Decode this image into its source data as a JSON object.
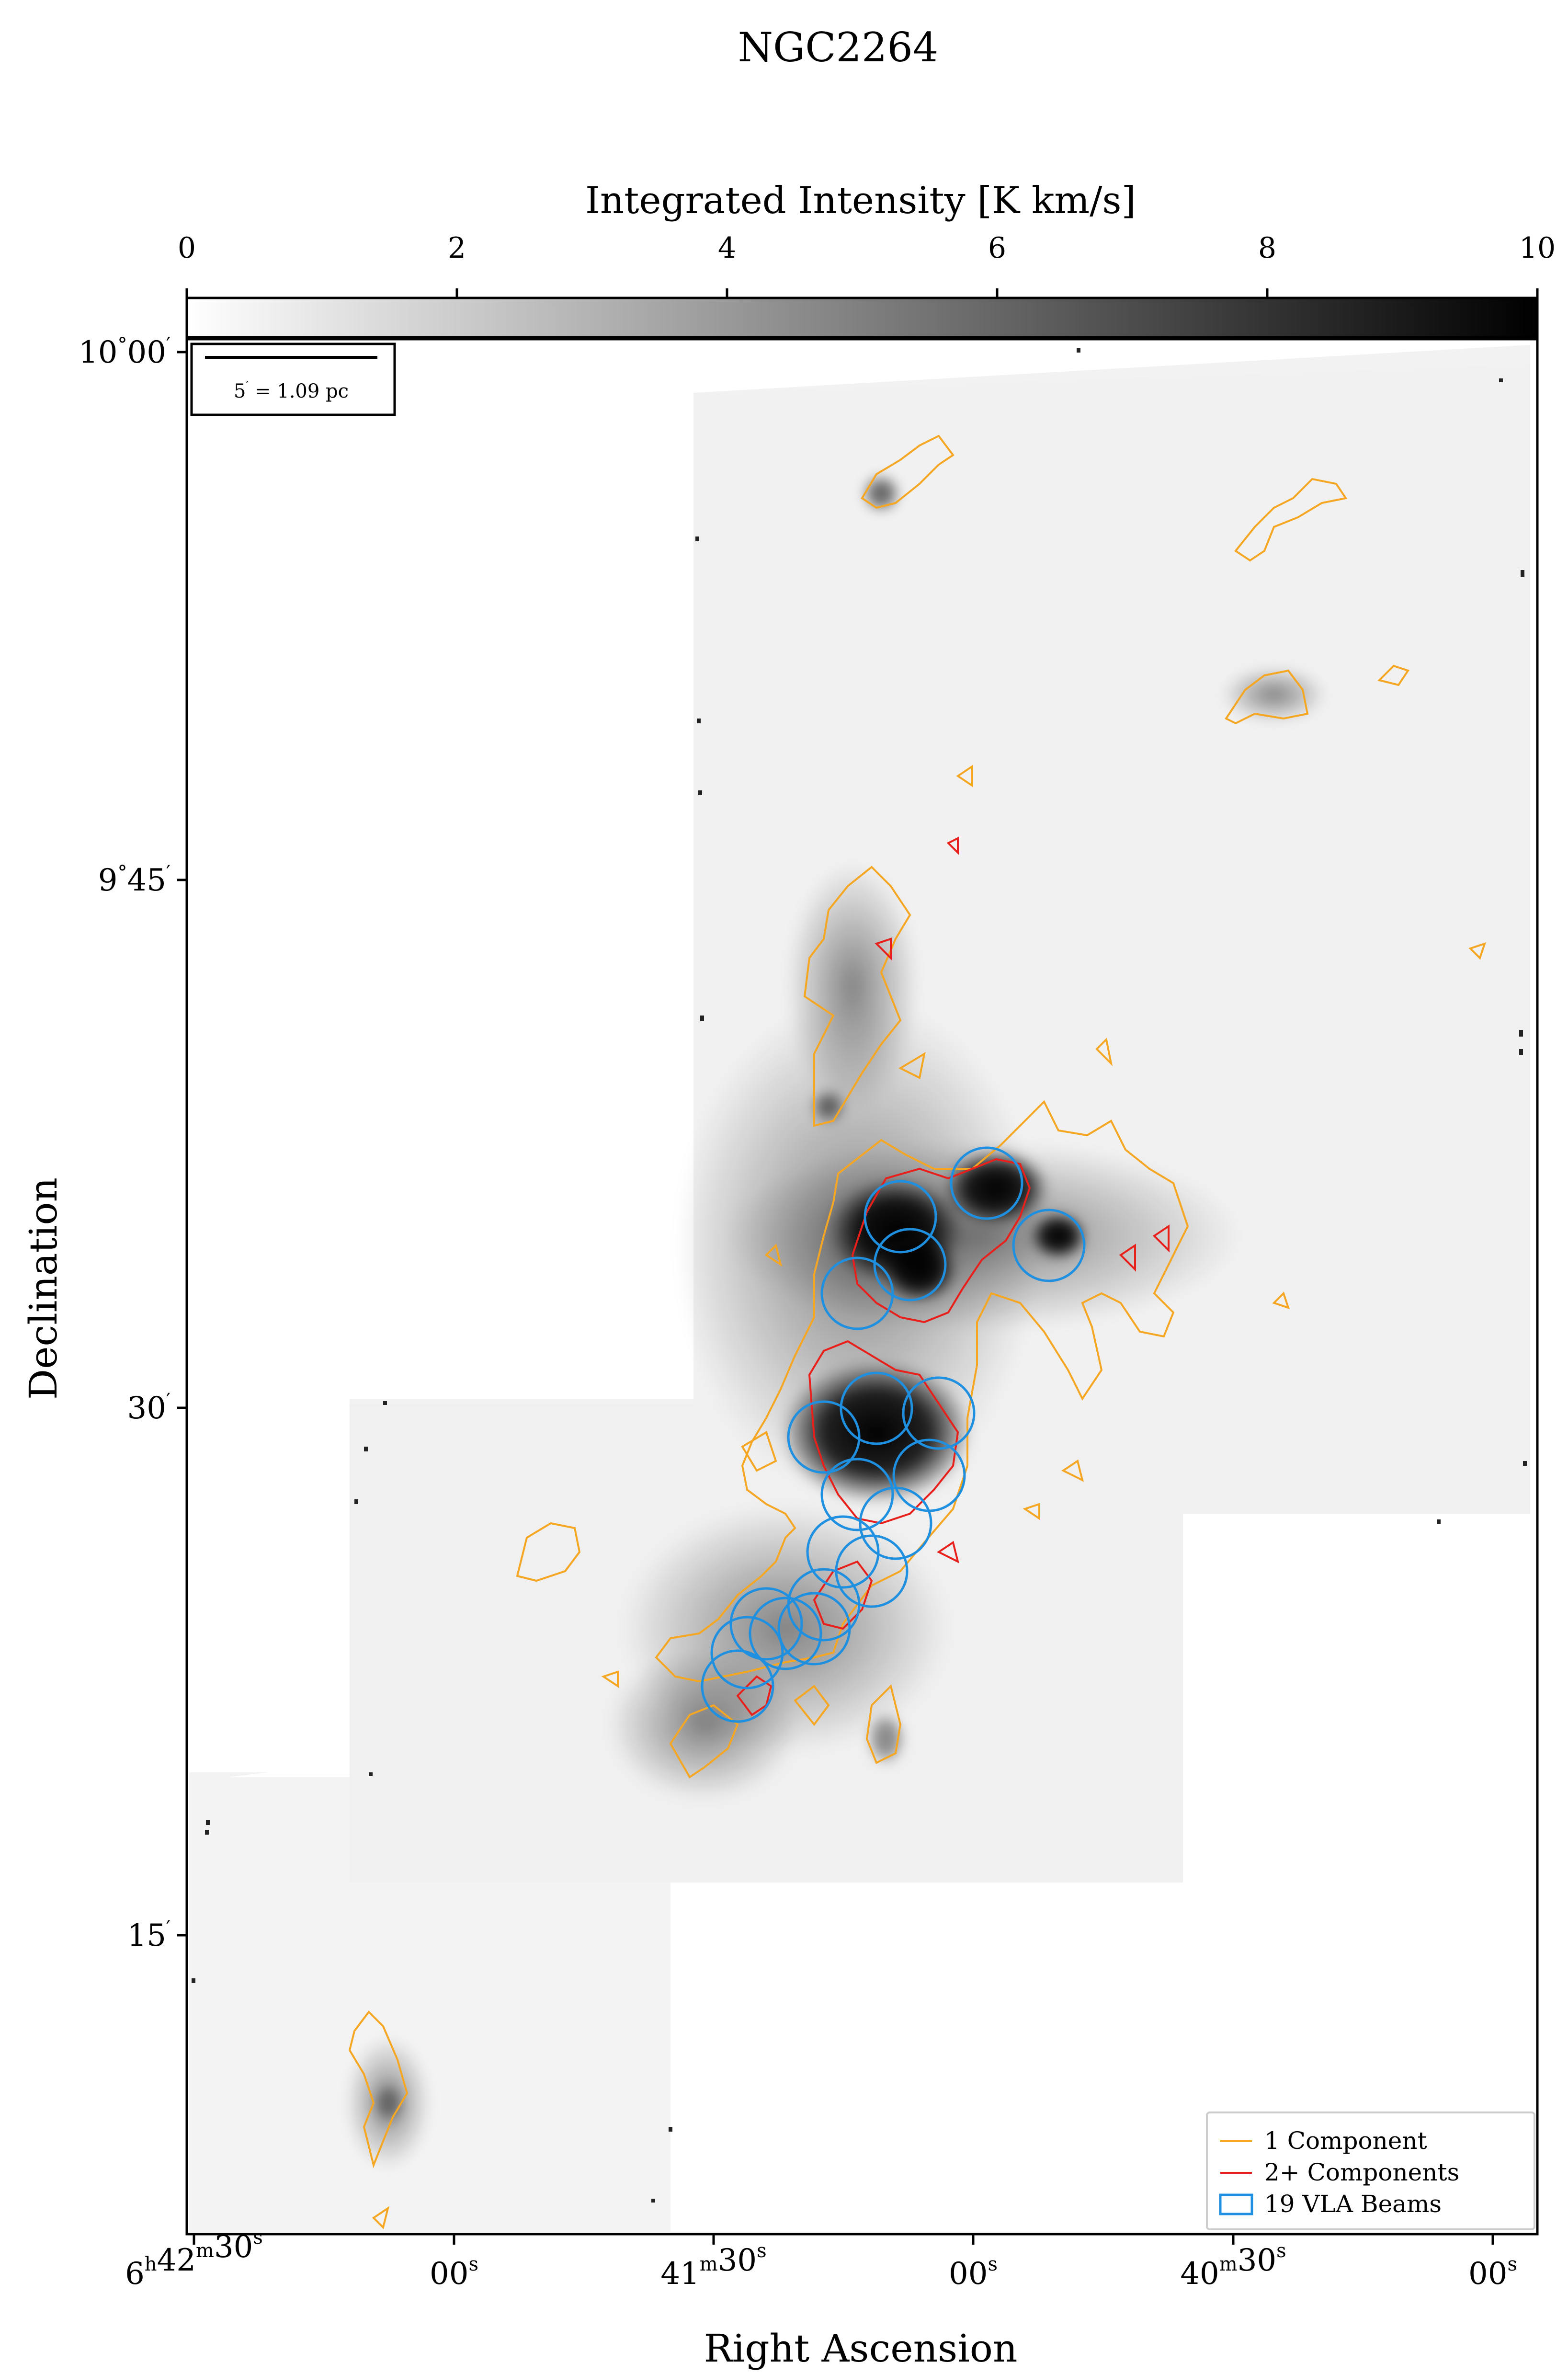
{
  "chart_data": {
    "type": "heatmap",
    "title": "NGC2264",
    "xlabel": "Right Ascension",
    "ylabel": "Declination",
    "colorbar": {
      "label": "Integrated Intensity [K km/s]",
      "range": [
        0,
        10
      ],
      "ticks": [
        "0",
        "2",
        "4",
        "6",
        "8",
        "10"
      ],
      "colormap": "gray_r",
      "placement": "top"
    },
    "x_ticks": [
      {
        "h": "6",
        "m": "42",
        "s": "30"
      },
      {
        "h": "",
        "m": "",
        "s": "00"
      },
      {
        "h": "",
        "m": "41",
        "s": "30"
      },
      {
        "h": "",
        "m": "",
        "s": "00"
      },
      {
        "h": "",
        "m": "40",
        "s": "30"
      },
      {
        "h": "",
        "m": "",
        "s": "00"
      }
    ],
    "y_ticks": [
      {
        "deg": "10",
        "min": "00"
      },
      {
        "deg": "9",
        "min": "45"
      },
      {
        "deg": "",
        "min": "30"
      },
      {
        "deg": "",
        "min": "15"
      }
    ],
    "scalebar": {
      "arcmin": "5",
      "value": "1.09 pc"
    },
    "legend": {
      "placement": "lower-right",
      "entries": [
        {
          "label": "1 Component",
          "color": "#f5a623",
          "style": "line"
        },
        {
          "label": "2+ Components",
          "color": "#e8201c",
          "style": "line"
        },
        {
          "label": "19 VLA Beams",
          "color": "#1f8fe0",
          "style": "box"
        }
      ]
    },
    "vla_beams": 19,
    "grid": false
  }
}
